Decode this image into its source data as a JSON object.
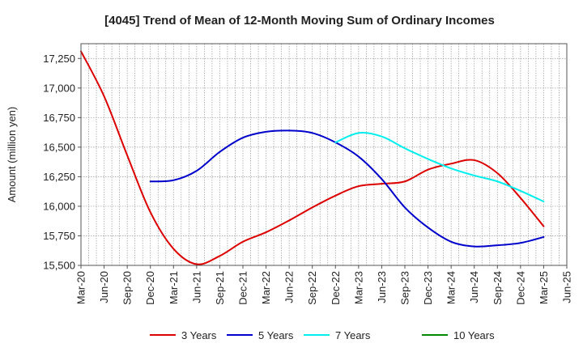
{
  "chart_data": {
    "type": "line",
    "title": "[4045]  Trend of Mean of 12-Month Moving Sum of Ordinary Incomes",
    "xlabel": "",
    "ylabel": "Amount (million yen)",
    "ylim": [
      15500,
      17375
    ],
    "yticks": [
      15500,
      15750,
      16000,
      16250,
      16500,
      16750,
      17000,
      17250
    ],
    "ytick_labels": [
      "15,500",
      "15,750",
      "16,000",
      "16,250",
      "16,500",
      "16,750",
      "17,000",
      "17,250"
    ],
    "x_start": "Mar-20",
    "x_end": "Jun-25",
    "x_tick_labels": [
      "Mar-20",
      "Jun-20",
      "Sep-20",
      "Dec-20",
      "Mar-21",
      "Jun-21",
      "Sep-21",
      "Dec-21",
      "Mar-22",
      "Jun-22",
      "Sep-22",
      "Dec-22",
      "Mar-23",
      "Jun-23",
      "Sep-23",
      "Dec-23",
      "Mar-24",
      "Jun-24",
      "Sep-24",
      "Dec-24",
      "Mar-25",
      "Jun-25"
    ],
    "grid": true,
    "legend_position": "bottom",
    "series": [
      {
        "name": "3 Years",
        "color": "#dd0000",
        "points": [
          [
            "Mar-20",
            17310
          ],
          [
            "Jun-20",
            16930
          ],
          [
            "Sep-20",
            16430
          ],
          [
            "Dec-20",
            15950
          ],
          [
            "Mar-21",
            15640
          ],
          [
            "Jun-21",
            15510
          ],
          [
            "Sep-21",
            15580
          ],
          [
            "Dec-21",
            15700
          ],
          [
            "Mar-22",
            15780
          ],
          [
            "Jun-22",
            15880
          ],
          [
            "Sep-22",
            15990
          ],
          [
            "Dec-22",
            16090
          ],
          [
            "Mar-23",
            16170
          ],
          [
            "Jun-23",
            16190
          ],
          [
            "Sep-23",
            16210
          ],
          [
            "Dec-23",
            16310
          ],
          [
            "Mar-24",
            16360
          ],
          [
            "Jun-24",
            16390
          ],
          [
            "Sep-24",
            16280
          ],
          [
            "Dec-24",
            16070
          ],
          [
            "Mar-25",
            15830
          ]
        ]
      },
      {
        "name": "5 Years",
        "color": "#0000cc",
        "points": [
          [
            "Dec-20",
            16210
          ],
          [
            "Mar-21",
            16220
          ],
          [
            "Jun-21",
            16300
          ],
          [
            "Sep-21",
            16460
          ],
          [
            "Dec-21",
            16580
          ],
          [
            "Mar-22",
            16630
          ],
          [
            "Jun-22",
            16640
          ],
          [
            "Sep-22",
            16620
          ],
          [
            "Dec-22",
            16540
          ],
          [
            "Mar-23",
            16420
          ],
          [
            "Jun-23",
            16230
          ],
          [
            "Sep-23",
            15990
          ],
          [
            "Dec-23",
            15820
          ],
          [
            "Mar-24",
            15700
          ],
          [
            "Jun-24",
            15660
          ],
          [
            "Sep-24",
            15670
          ],
          [
            "Dec-24",
            15690
          ],
          [
            "Mar-25",
            15740
          ]
        ]
      },
      {
        "name": "7 Years",
        "color": "#00eeee",
        "points": [
          [
            "Dec-22",
            16540
          ],
          [
            "Mar-23",
            16620
          ],
          [
            "Jun-23",
            16590
          ],
          [
            "Sep-23",
            16490
          ],
          [
            "Dec-23",
            16400
          ],
          [
            "Mar-24",
            16320
          ],
          [
            "Jun-24",
            16260
          ],
          [
            "Sep-24",
            16210
          ],
          [
            "Dec-24",
            16130
          ],
          [
            "Mar-25",
            16040
          ]
        ]
      },
      {
        "name": "10 Years",
        "color": "#008800",
        "points": []
      }
    ]
  }
}
